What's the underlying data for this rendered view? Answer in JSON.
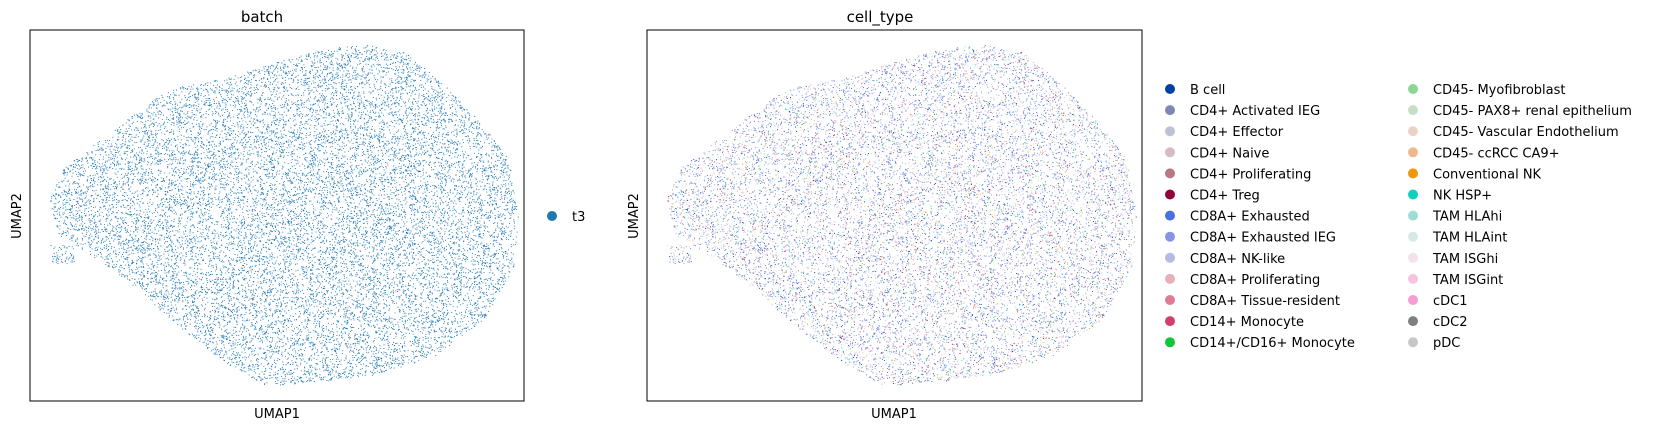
{
  "chart_data": [
    {
      "type": "scatter",
      "title": "batch",
      "xlabel": "UMAP1",
      "ylabel": "UMAP2",
      "grid": false,
      "ticks": false,
      "legend_location": "right",
      "series": [
        {
          "name": "t3",
          "color": "#1f77b4"
        }
      ]
    },
    {
      "type": "scatter",
      "title": "cell_type",
      "xlabel": "UMAP1",
      "ylabel": "UMAP2",
      "grid": false,
      "ticks": false,
      "legend_location": "right, two columns",
      "series": [
        {
          "name": "B cell",
          "color": "#023fa5"
        },
        {
          "name": "CD4+ Activated IEG",
          "color": "#7d87b9"
        },
        {
          "name": "CD4+ Effector",
          "color": "#bec1d4"
        },
        {
          "name": "CD4+ Naive",
          "color": "#d6bcc0"
        },
        {
          "name": "CD4+ Proliferating",
          "color": "#bb7784"
        },
        {
          "name": "CD4+ Treg",
          "color": "#8e063b"
        },
        {
          "name": "CD8A+ Exhausted",
          "color": "#4a6fe3"
        },
        {
          "name": "CD8A+ Exhausted IEG",
          "color": "#8595e1"
        },
        {
          "name": "CD8A+ NK-like",
          "color": "#b5bbe3"
        },
        {
          "name": "CD8A+ Proliferating",
          "color": "#e6afb9"
        },
        {
          "name": "CD8A+ Tissue-resident",
          "color": "#e07b91"
        },
        {
          "name": "CD14+ Monocyte",
          "color": "#d33f6a"
        },
        {
          "name": "CD14+/CD16+ Monocyte",
          "color": "#11c638"
        },
        {
          "name": "CD45- Myofibroblast",
          "color": "#8dd593"
        },
        {
          "name": "CD45- PAX8+ renal epithelium",
          "color": "#c6dec7"
        },
        {
          "name": "CD45- Vascular Endothelium",
          "color": "#ead3c6"
        },
        {
          "name": "CD45- ccRCC CA9+",
          "color": "#f0b98d"
        },
        {
          "name": "Conventional NK",
          "color": "#ef9708"
        },
        {
          "name": "NK HSP+",
          "color": "#0fcfc0"
        },
        {
          "name": "TAM HLAhi",
          "color": "#9cded6"
        },
        {
          "name": "TAM HLAint",
          "color": "#d5eae7"
        },
        {
          "name": "TAM ISGhi",
          "color": "#f3e1eb"
        },
        {
          "name": "TAM ISGint",
          "color": "#f6c4e1"
        },
        {
          "name": "cDC1",
          "color": "#f79cd4"
        },
        {
          "name": "cDC2",
          "color": "#7f7f7f"
        },
        {
          "name": "pDC",
          "color": "#c7c7c7"
        }
      ]
    }
  ]
}
